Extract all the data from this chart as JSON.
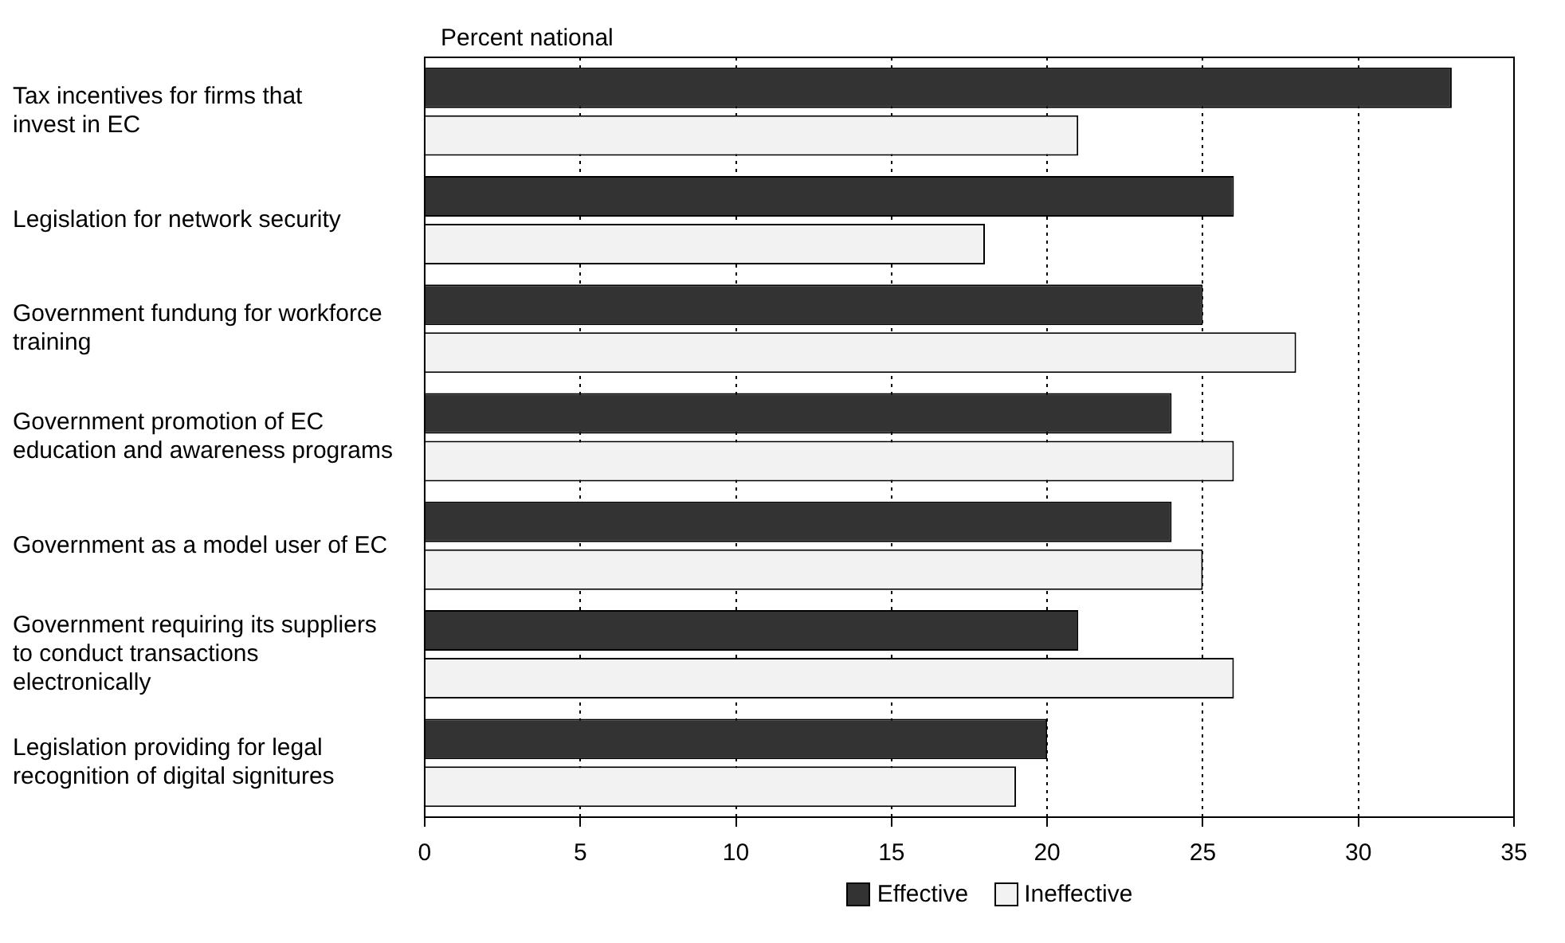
{
  "chart_data": {
    "type": "bar",
    "orientation": "horizontal",
    "title": "Percent national",
    "categories": [
      "Tax incentives for firms that invest in EC",
      "Legislation for network security",
      "Government fundung for workforce training",
      "Government promotion of EC education and awareness programs",
      "Government as a model user of EC",
      "Government requiring its suppliers to conduct transactions electronically",
      "Legislation providing for legal recognition of digital signitures"
    ],
    "series": [
      {
        "name": "Effective",
        "color": "#333333",
        "values": [
          33,
          26,
          25,
          24,
          24,
          21,
          20
        ]
      },
      {
        "name": "Ineffective",
        "color": "#f2f2f2",
        "values": [
          21,
          18,
          28,
          26,
          25,
          26,
          19
        ]
      }
    ],
    "xlim": [
      0,
      35
    ],
    "xticks": [
      0,
      5,
      10,
      15,
      20,
      25,
      30,
      35
    ],
    "grid": "x",
    "legend": "bottom"
  }
}
